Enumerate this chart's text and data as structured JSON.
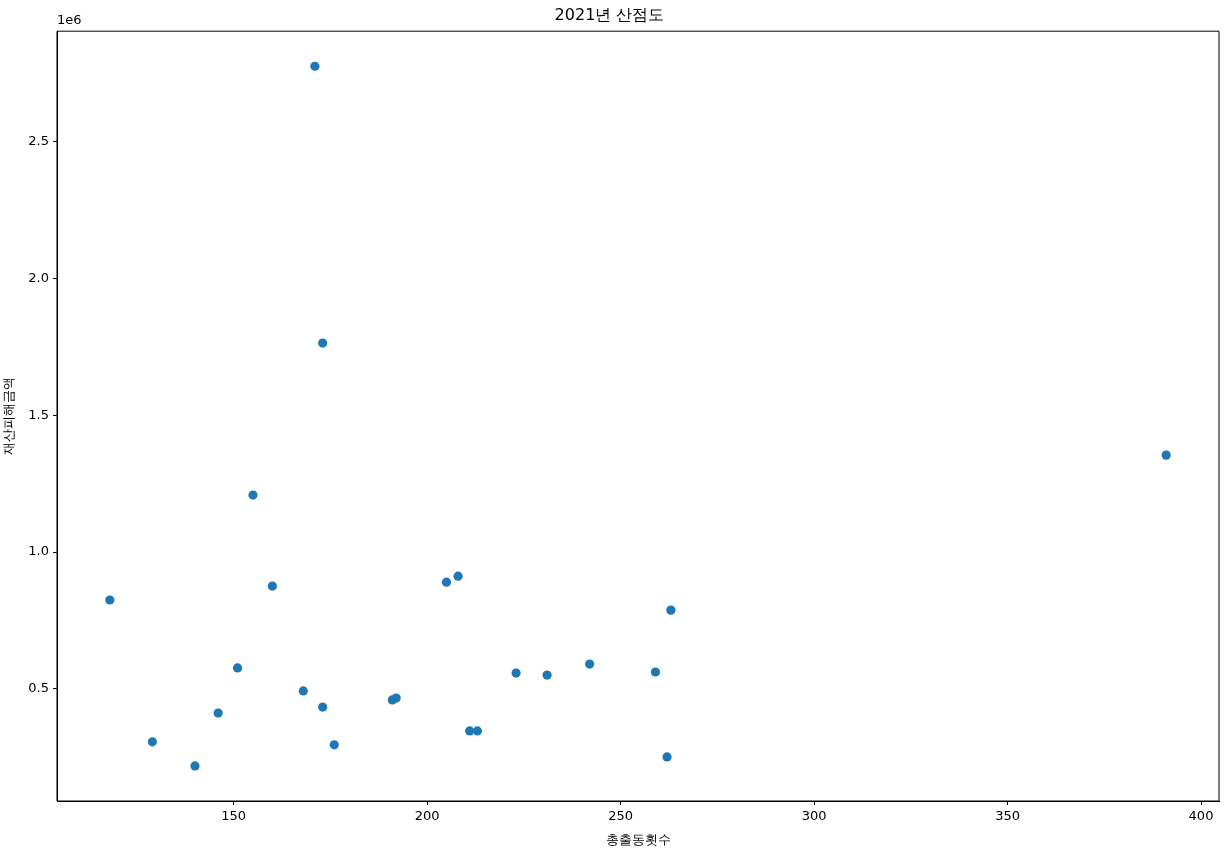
{
  "chart_data": {
    "type": "scatter",
    "title": "2021년 산점도",
    "xlabel": "총출동횟수",
    "ylabel": "재산피해금액",
    "annotations": [
      "1e6"
    ],
    "x": [
      118,
      129,
      140,
      146,
      151,
      155,
      160,
      168,
      171,
      173,
      173,
      176,
      191,
      192,
      205,
      208,
      211,
      213,
      223,
      231,
      242,
      259,
      262,
      263,
      391
    ],
    "values": [
      0.825,
      0.307,
      0.219,
      0.412,
      0.577,
      1.208,
      0.876,
      0.493,
      2.774,
      1.763,
      0.434,
      0.296,
      0.46,
      0.467,
      0.89,
      0.912,
      0.347,
      0.347,
      0.558,
      0.551,
      0.591,
      0.562,
      0.252,
      0.788,
      1.354
    ],
    "color": "#1f77b4",
    "marker": "circle",
    "xlim": [
      104.35,
      404.65
    ],
    "ylim": [
      0.091,
      2.902
    ],
    "xticks": [
      150,
      200,
      250,
      300,
      350,
      400
    ],
    "yticks": [
      0.5,
      {
        "value": 1,
        "label": "1.0"
      },
      1.5,
      {
        "value": 2,
        "label": "2.0"
      },
      2.5
    ],
    "grid": false,
    "legend": false
  }
}
